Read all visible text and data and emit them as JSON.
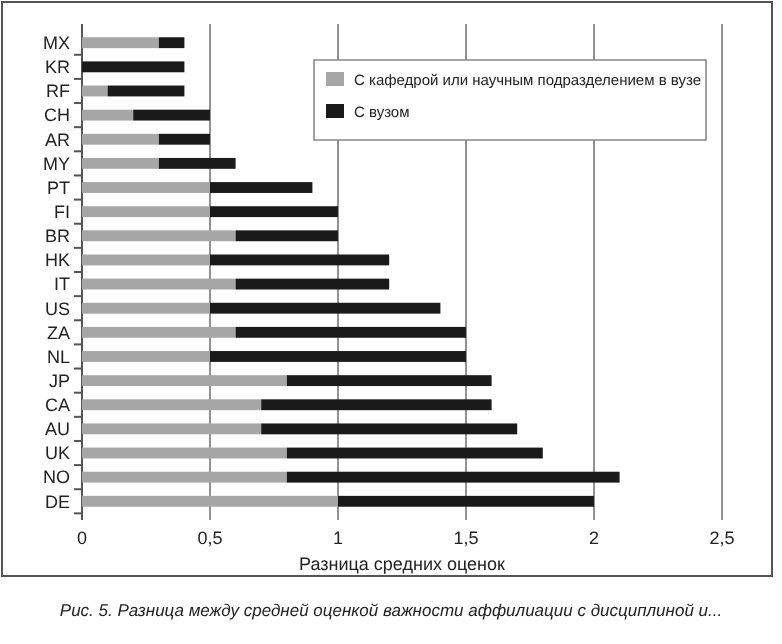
{
  "chart_data": {
    "type": "bar",
    "orientation": "horizontal",
    "stacked": true,
    "xlabel": "Разница средних оценок",
    "categories": [
      "MX",
      "KR",
      "RF",
      "CH",
      "AR",
      "MY",
      "PT",
      "FI",
      "BR",
      "HK",
      "IT",
      "US",
      "ZA",
      "NL",
      "JP",
      "CA",
      "AU",
      "UK",
      "NO",
      "DE"
    ],
    "series": [
      {
        "name": "С кафедрой или научным подразделением в вузе",
        "color": "#a6a6a6",
        "values": [
          0.3,
          0,
          0.1,
          0.2,
          0.3,
          0.3,
          0.5,
          0.5,
          0.6,
          0.5,
          0.6,
          0.5,
          0.6,
          0.5,
          0.8,
          0.7,
          0.7,
          0.8,
          0.8,
          1.0
        ]
      },
      {
        "name": "С вузом",
        "color": "#1a1a1a",
        "values": [
          0.1,
          0.4,
          0.3,
          0.3,
          0.2,
          0.3,
          0.4,
          0.5,
          0.4,
          0.7,
          0.6,
          0.9,
          0.9,
          1.0,
          0.8,
          0.9,
          1.0,
          1.0,
          1.3,
          1.0
        ]
      }
    ],
    "xlim": [
      0,
      2.5
    ],
    "xticks": [
      0,
      {
        "value": 0.5,
        "label": "0,5"
      },
      1,
      {
        "value": 1.5,
        "label": "1,5"
      },
      2,
      {
        "value": 2.5,
        "label": "2,5"
      }
    ],
    "grid": "x",
    "legend": "top right",
    "annotations": [
      "Рис. 5. Разница между средней оценкой важности аффилиации с дисциплиной и..."
    ]
  }
}
